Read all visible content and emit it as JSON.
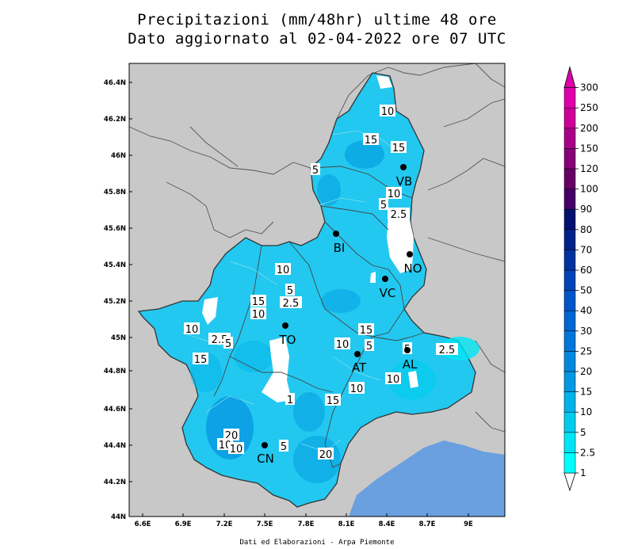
{
  "title": {
    "line1": "Precipitazioni (mm/48hr) ultime 48 ore",
    "line2": "Dato aggiornato al 02-04-2022 ore 07 UTC"
  },
  "credit": "Dati ed Elaborazioni - Arpa Piemonte",
  "axes": {
    "lon_ticks": [
      "6.6E",
      "6.9E",
      "7.2E",
      "7.5E",
      "7.8E",
      "8.1E",
      "8.4E",
      "8.7E",
      "9E"
    ],
    "lat_ticks": [
      "46.4N",
      "46.2N",
      "46N",
      "45.8N",
      "45.6N",
      "45.4N",
      "45.2N",
      "45N",
      "44.8N",
      "44.6N",
      "44.4N",
      "44.2N",
      "44N"
    ]
  },
  "legend": {
    "levels": [
      "1",
      "2.5",
      "5",
      "10",
      "15",
      "20",
      "25",
      "30",
      "40",
      "50",
      "60",
      "70",
      "80",
      "90",
      "100",
      "120",
      "150",
      "200",
      "250",
      "300"
    ],
    "colors": [
      "#ffffff",
      "#00ffff",
      "#00e5f5",
      "#00ccee",
      "#00b3e8",
      "#0099e0",
      "#0088dd",
      "#0077d8",
      "#0066d0",
      "#0055c8",
      "#0044b8",
      "#0033a0",
      "#002288",
      "#001170",
      "#440066",
      "#660066",
      "#880077",
      "#aa0088",
      "#cc0099",
      "#dd00aa"
    ]
  },
  "colors": {
    "background": "#c8c8c8",
    "sea": "#6a9fe0",
    "region_fill": "#22c8f0"
  },
  "cities": [
    {
      "name": "VB"
    },
    {
      "name": "BI"
    },
    {
      "name": "NO"
    },
    {
      "name": "VC"
    },
    {
      "name": "TO"
    },
    {
      "name": "AT"
    },
    {
      "name": "AL"
    },
    {
      "name": "CN"
    }
  ],
  "contour_labels": [
    "10",
    "15",
    "15",
    "5",
    "10",
    "5",
    "2.5",
    "10",
    "5",
    "15",
    "2.5",
    "10",
    "10",
    "2.5",
    "5",
    "15",
    "10",
    "15",
    "10",
    "5",
    "10",
    "5",
    "2.5",
    "1",
    "15",
    "20",
    "10",
    "10",
    "5",
    "20"
  ]
}
